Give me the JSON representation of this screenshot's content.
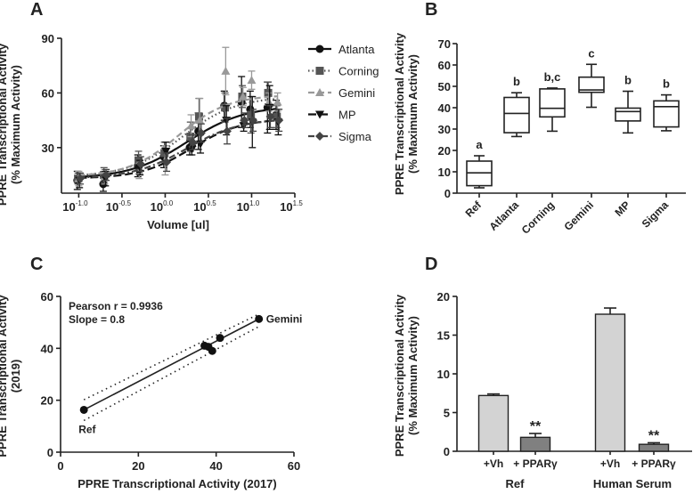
{
  "panels": {
    "A": "A",
    "B": "B",
    "C": "C",
    "D": "D"
  },
  "chart_data": [
    {
      "type": "line",
      "panel": "A",
      "xlabel": "Volume [ul]",
      "ylabel": [
        "PPRE Transcriptional Activity",
        "(% Maximum Activity)"
      ],
      "xscale": "log10",
      "xlim_log10": [
        -1.2,
        1.5
      ],
      "ylim": [
        5,
        90
      ],
      "yticks": [
        "30",
        "60",
        "90"
      ],
      "xtick_base": "10",
      "xtick_exponents": [
        "-1.0",
        "-0.5",
        "0.0",
        "0.5",
        "1.0",
        "1.5"
      ],
      "legend_position": "right",
      "x_log10": [
        -1.0,
        -0.7,
        -0.3,
        0.0,
        0.3,
        0.4,
        0.7,
        0.9,
        1.0,
        1.2,
        1.3
      ],
      "series": [
        {
          "name": "Atlanta",
          "color": "#111111",
          "marker": "circle",
          "dash": "solid",
          "values": [
            12,
            10,
            20,
            25,
            30,
            39,
            53,
            55,
            51,
            52,
            48
          ],
          "err": [
            5,
            4,
            6,
            6,
            4,
            10,
            8,
            14,
            10,
            14,
            8
          ],
          "fit": {
            "bottom": 13,
            "top": 53,
            "logEC50": 0.25,
            "hill": 1.3
          }
        },
        {
          "name": "Corning",
          "color": "#555555",
          "marker": "square",
          "dash": "dotted",
          "values": [
            13,
            15,
            23,
            27,
            36,
            47,
            52,
            58,
            48,
            60,
            47
          ],
          "err": [
            3,
            4,
            5,
            6,
            8,
            10,
            8,
            6,
            10,
            6,
            6
          ],
          "fit": {
            "bottom": 14,
            "top": 58,
            "logEC50": 0.2,
            "hill": 1.4
          }
        },
        {
          "name": "Gemini",
          "color": "#999999",
          "marker": "triangle",
          "dash": "dashed",
          "values": [
            13,
            14,
            17,
            23,
            42,
            45,
            72,
            58,
            67,
            55,
            55
          ],
          "err": [
            4,
            4,
            4,
            8,
            6,
            12,
            13,
            5,
            5,
            5,
            5
          ],
          "fit": {
            "bottom": 14,
            "top": 59,
            "logEC50": 0.15,
            "hill": 1.5
          }
        },
        {
          "name": "MP",
          "color": "#111111",
          "marker": "triangle-down",
          "dash": "longdash",
          "values": [
            12,
            13,
            19,
            28,
            29,
            32,
            45,
            42,
            44,
            52,
            44
          ],
          "err": [
            4,
            4,
            4,
            5,
            3,
            5,
            8,
            3,
            14,
            12,
            7
          ],
          "fit": {
            "bottom": 13,
            "top": 46,
            "logEC50": 0.3,
            "hill": 1.5
          }
        },
        {
          "name": "Sigma",
          "color": "#444444",
          "marker": "diamond",
          "dash": "dashdot",
          "values": [
            13,
            15,
            21,
            22,
            33,
            38,
            39,
            45,
            45,
            47,
            45
          ],
          "err": [
            3,
            3,
            4,
            5,
            4,
            5,
            7,
            4,
            6,
            6,
            6
          ],
          "fit": {
            "bottom": 13,
            "top": 46,
            "logEC50": 0.25,
            "hill": 1.4
          }
        }
      ]
    },
    {
      "type": "box",
      "panel": "B",
      "ylabel": [
        "PPRE Transcriptional Activity",
        "(% Maximum Activity)"
      ],
      "ylim": [
        0,
        70
      ],
      "yticks": [
        "0",
        "10",
        "20",
        "30",
        "40",
        "50",
        "60",
        "70"
      ],
      "categories": [
        "Ref",
        "Atlanta",
        "Corning",
        "Gemini",
        "MP",
        "Sigma"
      ],
      "boxes": [
        {
          "min": 2.5,
          "q1": 3.5,
          "median": 9.5,
          "q3": 15,
          "max": 17.5,
          "letter": "a"
        },
        {
          "min": 26.5,
          "q1": 28.3,
          "median": 37.3,
          "q3": 44.8,
          "max": 47,
          "letter": "b"
        },
        {
          "min": 29,
          "q1": 35.7,
          "median": 39.7,
          "q3": 48.8,
          "max": 49.2,
          "letter": "b,c"
        },
        {
          "min": 40.2,
          "q1": 47.2,
          "median": 48.3,
          "q3": 54.3,
          "max": 60.3,
          "letter": "c"
        },
        {
          "min": 28.2,
          "q1": 33.8,
          "median": 38.2,
          "q3": 39.8,
          "max": 47.7,
          "letter": "b"
        },
        {
          "min": 29.2,
          "q1": 31,
          "median": 40.5,
          "q3": 43.2,
          "max": 46,
          "letter": "b"
        }
      ]
    },
    {
      "type": "scatter",
      "panel": "C",
      "xlabel": "PPRE Transcriptional Activity (2017)",
      "ylabel": [
        "PPRE Transcriptional Activity",
        "(2019)"
      ],
      "xlim": [
        0,
        60
      ],
      "ylim": [
        0,
        60
      ],
      "xticks": [
        "0",
        "20",
        "40",
        "60"
      ],
      "yticks": [
        "0",
        "20",
        "40",
        "60"
      ],
      "points": [
        [
          6,
          16.3
        ],
        [
          37,
          41
        ],
        [
          38,
          40.6
        ],
        [
          39,
          39
        ],
        [
          41,
          44
        ],
        [
          51,
          51.3
        ]
      ],
      "point_labels": {
        "first": "Ref",
        "last": "Gemini"
      },
      "fit_line": {
        "x": [
          6,
          51
        ],
        "y": [
          16.3,
          51.3
        ]
      },
      "ci_upper": {
        "x": [
          6,
          51
        ],
        "y": [
          20.2,
          53.2
        ]
      },
      "ci_lower": {
        "x": [
          6,
          51
        ],
        "y": [
          12.2,
          48.4
        ]
      },
      "annotations": [
        "Pearson r = 0.9936",
        "Slope = 0.8"
      ]
    },
    {
      "type": "bar",
      "panel": "D",
      "ylabel": [
        "PPRE Transcriptional Activity",
        "(% Maximum Activity)"
      ],
      "ylim": [
        0,
        20
      ],
      "yticks": [
        "0",
        "5",
        "10",
        "15",
        "20"
      ],
      "groups": [
        "Ref",
        "Human Serum"
      ],
      "bars": [
        {
          "label": "+Vh",
          "value": 7.2,
          "err": 0.2,
          "color": "#d3d3d3",
          "sig": ""
        },
        {
          "label": "+ PPARγ",
          "value": 1.8,
          "err": 0.5,
          "color": "#808080",
          "sig": "**"
        },
        {
          "label": "+Vh",
          "value": 17.7,
          "err": 0.8,
          "color": "#d3d3d3",
          "sig": ""
        },
        {
          "label": "+ PPARγ",
          "value": 0.9,
          "err": 0.2,
          "color": "#808080",
          "sig": "**"
        }
      ]
    }
  ]
}
